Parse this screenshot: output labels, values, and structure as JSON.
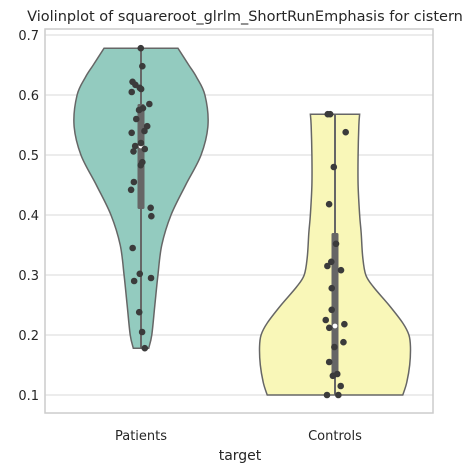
{
  "chart_data": {
    "type": "violin",
    "title": "Violinplot of squareroot_glrlm_ShortRunEmphasis for cistern",
    "xlabel": "target",
    "ylabel": "",
    "categories": [
      "Patients",
      "Controls"
    ],
    "ylim": [
      0.07,
      0.71
    ],
    "yticks": [
      0.1,
      0.2,
      0.3,
      0.4,
      0.5,
      0.6,
      0.7
    ],
    "grid": "horizontal",
    "colors": {
      "Patients": "#93cbbf",
      "Controls": "#f9f7b8",
      "outline": "#666666",
      "box": "#666666",
      "points": "#3b3b3b",
      "grid": "#d9d9d9",
      "frame": "#cccccc"
    },
    "violins": [
      {
        "name": "Patients",
        "min": 0.178,
        "max": 0.678,
        "q1": 0.41,
        "median": 0.515,
        "q3": 0.585,
        "profile": [
          [
            0.178,
            0.1
          ],
          [
            0.2,
            0.14
          ],
          [
            0.25,
            0.18
          ],
          [
            0.3,
            0.22
          ],
          [
            0.35,
            0.27
          ],
          [
            0.4,
            0.39
          ],
          [
            0.45,
            0.58
          ],
          [
            0.5,
            0.78
          ],
          [
            0.55,
            0.87
          ],
          [
            0.6,
            0.83
          ],
          [
            0.63,
            0.72
          ],
          [
            0.65,
            0.62
          ],
          [
            0.678,
            0.48
          ]
        ],
        "points": [
          0.678,
          0.648,
          0.622,
          0.617,
          0.612,
          0.61,
          0.605,
          0.585,
          0.578,
          0.575,
          0.56,
          0.548,
          0.54,
          0.537,
          0.52,
          0.515,
          0.51,
          0.506,
          0.488,
          0.483,
          0.455,
          0.442,
          0.412,
          0.398,
          0.345,
          0.302,
          0.295,
          0.29,
          0.238,
          0.205,
          0.178
        ]
      },
      {
        "name": "Controls",
        "min": 0.1,
        "max": 0.568,
        "q1": 0.135,
        "median": 0.215,
        "q3": 0.37,
        "profile": [
          [
            0.1,
            0.88
          ],
          [
            0.12,
            0.93
          ],
          [
            0.15,
            0.97
          ],
          [
            0.18,
            0.98
          ],
          [
            0.2,
            0.96
          ],
          [
            0.22,
            0.88
          ],
          [
            0.25,
            0.7
          ],
          [
            0.28,
            0.5
          ],
          [
            0.3,
            0.4
          ],
          [
            0.33,
            0.36
          ],
          [
            0.37,
            0.34
          ],
          [
            0.4,
            0.32
          ],
          [
            0.45,
            0.3
          ],
          [
            0.5,
            0.3
          ],
          [
            0.55,
            0.31
          ],
          [
            0.568,
            0.32
          ]
        ],
        "points": [
          0.568,
          0.568,
          0.538,
          0.48,
          0.418,
          0.352,
          0.322,
          0.315,
          0.308,
          0.278,
          0.242,
          0.225,
          0.218,
          0.212,
          0.188,
          0.18,
          0.155,
          0.135,
          0.132,
          0.115,
          0.1,
          0.1
        ]
      }
    ]
  }
}
